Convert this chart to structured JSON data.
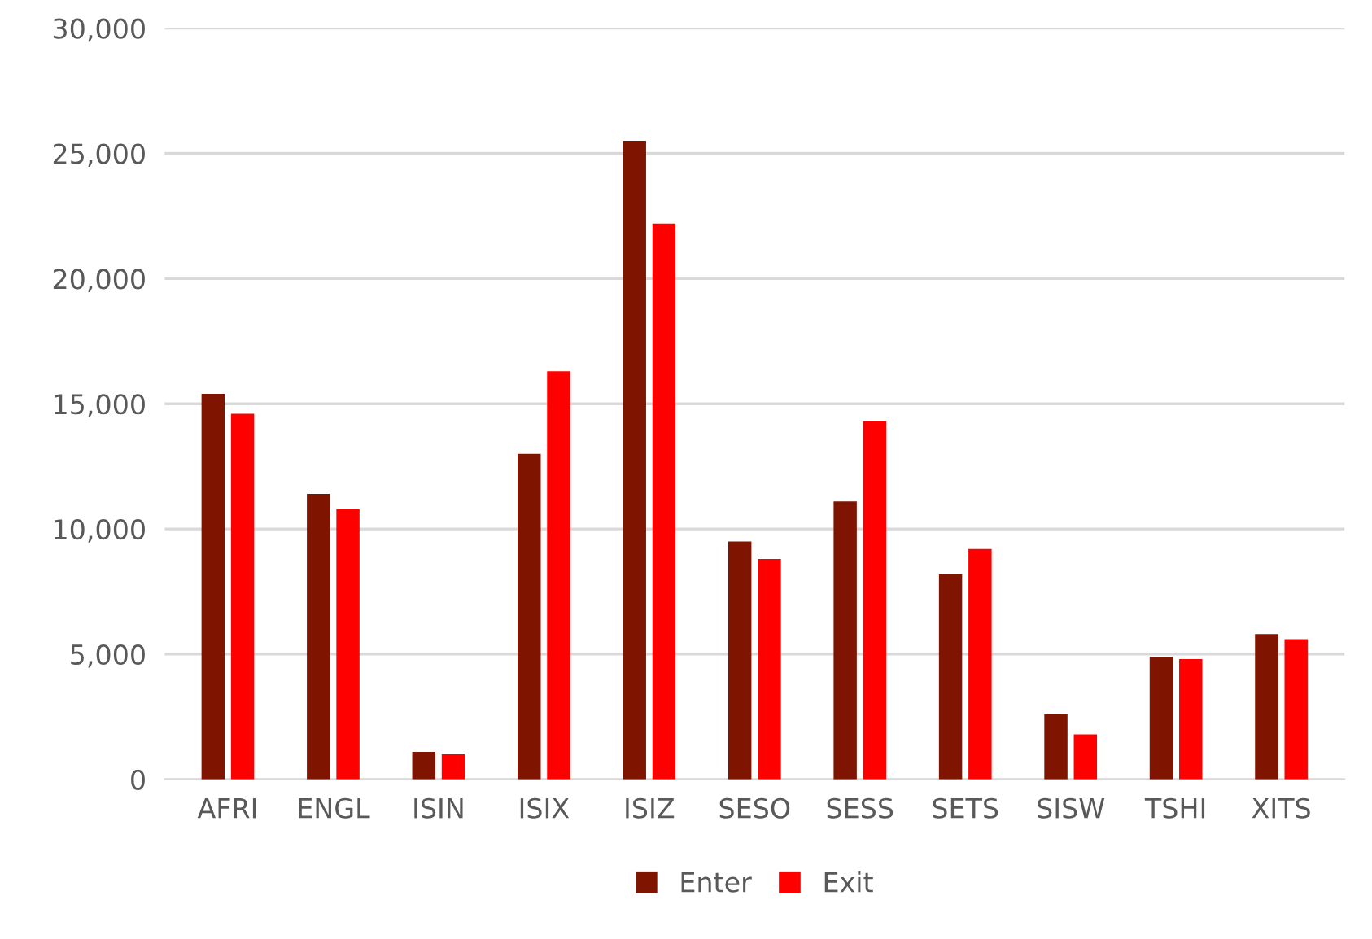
{
  "chart_data": {
    "type": "bar",
    "categories": [
      "AFRI",
      "ENGL",
      "ISIN",
      "ISIX",
      "ISIZ",
      "SESO",
      "SESS",
      "SETS",
      "SISW",
      "TSHI",
      "XITS"
    ],
    "series": [
      {
        "name": "Enter",
        "color": "#7f1400",
        "values": [
          15400,
          11400,
          1100,
          13000,
          25500,
          9500,
          11100,
          8200,
          2600,
          4900,
          5800
        ]
      },
      {
        "name": "Exit",
        "color": "#ff0000",
        "values": [
          14600,
          10800,
          1000,
          16300,
          22200,
          8800,
          14300,
          9200,
          1800,
          4800,
          5600
        ]
      }
    ],
    "ylim": [
      0,
      30000
    ],
    "yticks": [
      {
        "value": 0,
        "label": "0"
      },
      {
        "value": 5000,
        "label": "5,000"
      },
      {
        "value": 10000,
        "label": "10,000"
      },
      {
        "value": 15000,
        "label": "15,000"
      },
      {
        "value": 20000,
        "label": "20,000"
      },
      {
        "value": 25000,
        "label": "25,000"
      },
      {
        "value": 30000,
        "label": "30,000"
      }
    ],
    "grid": "y",
    "legend": "bottom"
  }
}
